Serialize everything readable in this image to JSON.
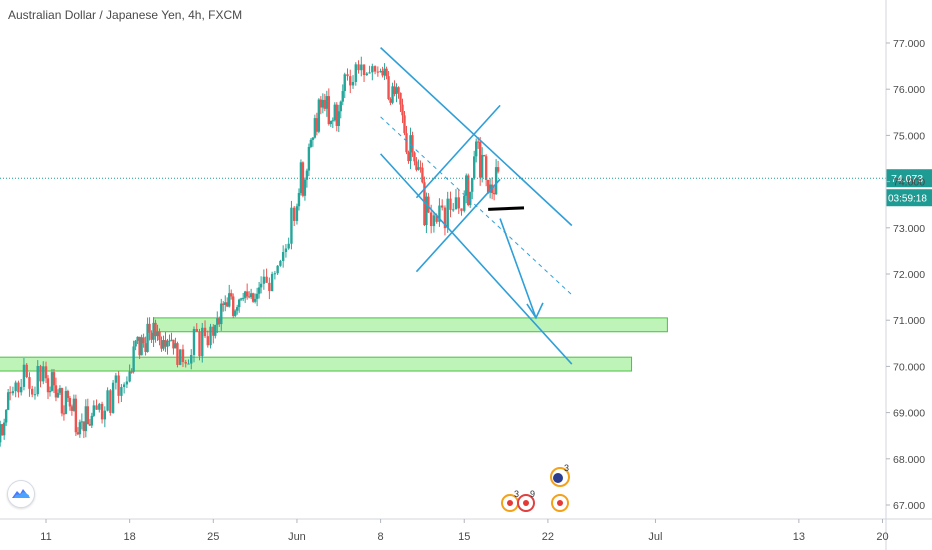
{
  "header": {
    "title": "Australian Dollar / Japanese Yen, 4h, FXCM"
  },
  "price_axis": {
    "last_price": "74.073",
    "countdown": "03:59:18",
    "last_price_bg": "#1e9c94",
    "countdown_bg": "#1e9c94"
  },
  "colors": {
    "up": "#26a69a",
    "down": "#ef5350",
    "channel": "#2f9fd8",
    "zone_fill": "#a8f0a0",
    "zone_stroke": "#4cbf46"
  },
  "events": {
    "badge_a": "3",
    "badge_b": "9",
    "badge_c": "3"
  },
  "logo_icon": "tradingview-cloud-icon",
  "chart_data": {
    "type": "candlestick",
    "title": "Australian Dollar / Japanese Yen, 4h, FXCM",
    "x_axis": {
      "ticks": [
        {
          "label": "11",
          "date": "2020-05-11"
        },
        {
          "label": "18",
          "date": "2020-05-18"
        },
        {
          "label": "25",
          "date": "2020-05-25"
        },
        {
          "label": "Jun",
          "date": "2020-06-01"
        },
        {
          "label": "8",
          "date": "2020-06-08"
        },
        {
          "label": "15",
          "date": "2020-06-15"
        },
        {
          "label": "22",
          "date": "2020-06-22"
        },
        {
          "label": "Jul",
          "date": "2020-07-01"
        },
        {
          "label": "13",
          "date": "2020-07-13"
        },
        {
          "label": "20",
          "date": "2020-07-20"
        }
      ]
    },
    "y_axis": {
      "range": [
        66.75,
        77.75
      ],
      "ticks": [
        "67.000",
        "68.000",
        "69.000",
        "70.000",
        "71.000",
        "72.000",
        "73.000",
        "74.000",
        "75.000",
        "76.000",
        "77.000"
      ]
    },
    "last_price": 74.073,
    "daily_path": [
      {
        "date": "2020-05-07",
        "open": 68.1,
        "high": 68.7,
        "low": 67.85,
        "close": 68.5
      },
      {
        "date": "2020-05-08",
        "open": 68.5,
        "high": 69.7,
        "low": 68.4,
        "close": 69.55
      },
      {
        "date": "2020-05-11",
        "open": 69.55,
        "high": 70.2,
        "low": 69.2,
        "close": 69.8
      },
      {
        "date": "2020-05-12",
        "open": 69.8,
        "high": 70.15,
        "low": 69.0,
        "close": 69.3
      },
      {
        "date": "2020-05-13",
        "open": 69.3,
        "high": 69.8,
        "low": 68.9,
        "close": 69.2
      },
      {
        "date": "2020-05-14",
        "open": 69.2,
        "high": 69.45,
        "low": 68.55,
        "close": 68.75
      },
      {
        "date": "2020-05-15",
        "open": 68.75,
        "high": 69.2,
        "low": 68.6,
        "close": 69.0
      },
      {
        "date": "2020-05-18",
        "open": 69.0,
        "high": 70.1,
        "low": 68.9,
        "close": 69.9
      },
      {
        "date": "2020-05-19",
        "open": 69.9,
        "high": 70.75,
        "low": 69.75,
        "close": 70.55
      },
      {
        "date": "2020-05-20",
        "open": 70.55,
        "high": 71.0,
        "low": 70.3,
        "close": 70.8
      },
      {
        "date": "2020-05-21",
        "open": 70.8,
        "high": 71.05,
        "low": 70.4,
        "close": 70.6
      },
      {
        "date": "2020-05-22",
        "open": 70.6,
        "high": 70.85,
        "low": 70.0,
        "close": 70.2
      },
      {
        "date": "2020-05-25",
        "open": 70.2,
        "high": 70.9,
        "low": 70.1,
        "close": 70.75
      },
      {
        "date": "2020-05-26",
        "open": 70.75,
        "high": 71.5,
        "low": 70.7,
        "close": 71.3
      },
      {
        "date": "2020-05-27",
        "open": 71.3,
        "high": 71.7,
        "low": 71.0,
        "close": 71.4
      },
      {
        "date": "2020-05-28",
        "open": 71.4,
        "high": 71.8,
        "low": 71.1,
        "close": 71.5
      },
      {
        "date": "2020-05-29",
        "open": 71.5,
        "high": 71.95,
        "low": 71.2,
        "close": 71.7
      },
      {
        "date": "2020-06-01",
        "open": 71.7,
        "high": 73.8,
        "low": 71.6,
        "close": 73.6
      },
      {
        "date": "2020-06-02",
        "open": 73.6,
        "high": 75.0,
        "low": 73.5,
        "close": 74.8
      },
      {
        "date": "2020-06-03",
        "open": 74.8,
        "high": 75.9,
        "low": 74.6,
        "close": 75.6
      },
      {
        "date": "2020-06-04",
        "open": 75.6,
        "high": 75.8,
        "low": 74.8,
        "close": 75.3
      },
      {
        "date": "2020-06-05",
        "open": 75.3,
        "high": 76.6,
        "low": 75.2,
        "close": 76.3
      },
      {
        "date": "2020-06-08",
        "open": 76.3,
        "high": 76.8,
        "low": 76.0,
        "close": 76.4
      },
      {
        "date": "2020-06-09",
        "open": 76.4,
        "high": 76.6,
        "low": 75.7,
        "close": 75.9
      },
      {
        "date": "2020-06-10",
        "open": 75.9,
        "high": 76.0,
        "low": 74.9,
        "close": 75.1
      },
      {
        "date": "2020-06-11",
        "open": 75.1,
        "high": 75.3,
        "low": 73.9,
        "close": 74.2
      },
      {
        "date": "2020-06-12",
        "open": 74.2,
        "high": 74.4,
        "low": 72.6,
        "close": 73.2
      },
      {
        "date": "2020-06-15",
        "open": 73.2,
        "high": 73.8,
        "low": 72.9,
        "close": 73.6
      },
      {
        "date": "2020-06-16",
        "open": 73.6,
        "high": 75.0,
        "low": 73.5,
        "close": 74.7
      },
      {
        "date": "2020-06-17",
        "open": 74.7,
        "high": 74.8,
        "low": 73.6,
        "close": 73.9
      },
      {
        "date": "2020-06-18",
        "open": 73.9,
        "high": 74.3,
        "low": 73.6,
        "close": 74.073
      }
    ],
    "annotations": {
      "support_zones": [
        {
          "from": "2020-05-20",
          "to": "2020-07-02",
          "low": 70.75,
          "high": 71.05
        },
        {
          "from": "2020-05-06",
          "to": "2020-06-29",
          "low": 69.9,
          "high": 70.2
        }
      ],
      "descending_channel": {
        "upper": {
          "from": {
            "date": "2020-06-08",
            "price": 76.9
          },
          "to": {
            "date": "2020-06-24",
            "price": 73.05
          }
        },
        "lower": {
          "from": {
            "date": "2020-06-08",
            "price": 74.6
          },
          "to": {
            "date": "2020-06-24",
            "price": 70.05
          }
        },
        "midline": {
          "from": {
            "date": "2020-06-08",
            "price": 75.4
          },
          "to": {
            "date": "2020-06-24",
            "price": 71.55
          }
        }
      },
      "rising_flag": {
        "upper": {
          "from": {
            "date": "2020-06-11",
            "price": 73.65
          },
          "to": {
            "date": "2020-06-18",
            "price": 75.65
          }
        },
        "lower": {
          "from": {
            "date": "2020-06-11",
            "price": 72.05
          },
          "to": {
            "date": "2020-06-18",
            "price": 74.05
          }
        }
      },
      "breakout_level": {
        "from": "2020-06-17",
        "to": "2020-06-20",
        "price": 73.4
      },
      "projection_arrow": {
        "from": {
          "date": "2020-06-18",
          "price": 73.2
        },
        "to": {
          "date": "2020-06-21",
          "price": 71.05
        }
      }
    }
  }
}
